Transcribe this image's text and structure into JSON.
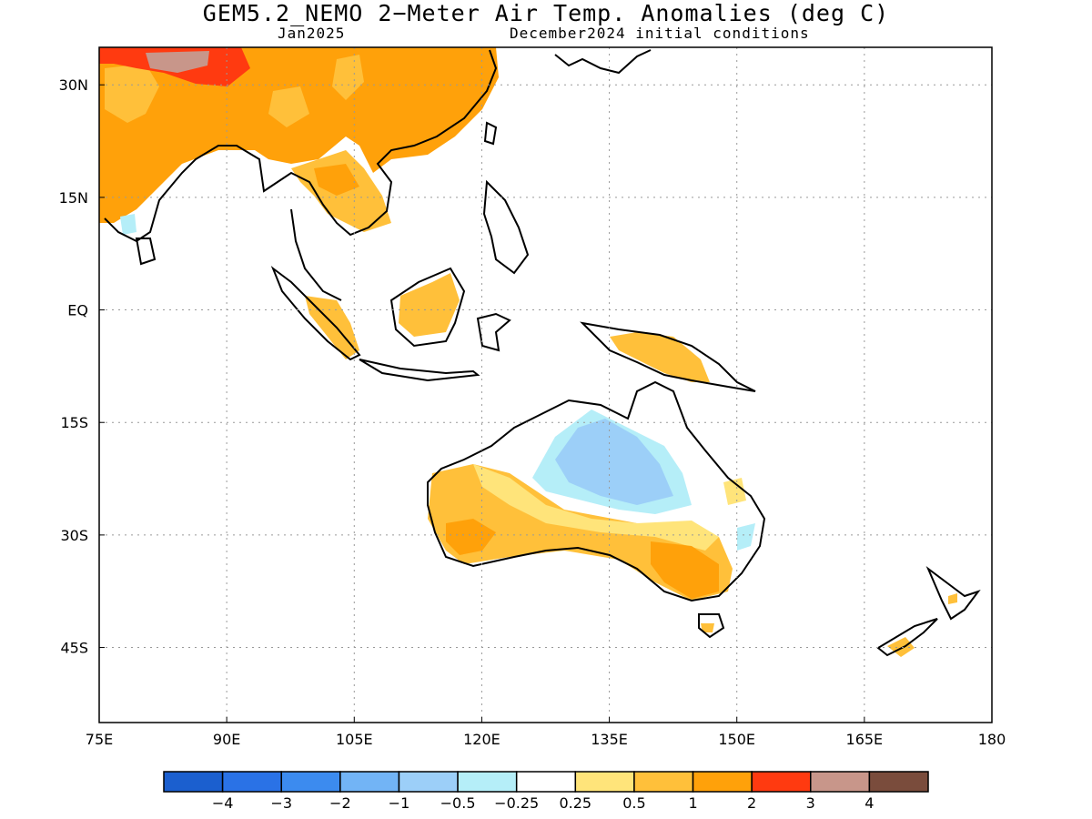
{
  "header": {
    "title": "GEM5.2_NEMO 2−Meter Air Temp. Anomalies (deg C)",
    "valid_month": "Jan2025",
    "init_conditions": "December2024 initial conditions"
  },
  "map": {
    "lon_range": [
      75,
      180
    ],
    "lat_range": [
      -55,
      35
    ],
    "gridlines": true,
    "x_ticks": [
      {
        "lon": 75,
        "label": "75E"
      },
      {
        "lon": 90,
        "label": "90E"
      },
      {
        "lon": 105,
        "label": "105E"
      },
      {
        "lon": 120,
        "label": "120E"
      },
      {
        "lon": 135,
        "label": "135E"
      },
      {
        "lon": 150,
        "label": "150E"
      },
      {
        "lon": 165,
        "label": "165E"
      },
      {
        "lon": 180,
        "label": "180"
      }
    ],
    "y_ticks": [
      {
        "lat": 30,
        "label": "30N"
      },
      {
        "lat": 15,
        "label": "15N"
      },
      {
        "lat": 0,
        "label": "EQ"
      },
      {
        "lat": -15,
        "label": "15S"
      },
      {
        "lat": -30,
        "label": "30S"
      },
      {
        "lat": -45,
        "label": "45S"
      }
    ]
  },
  "colorbar": {
    "colors": [
      "#1b5fcf",
      "#2a72e6",
      "#3c8bef",
      "#72b4f6",
      "#9ccff8",
      "#b5eef8",
      "#ffffff",
      "#ffe47a",
      "#ffc03a",
      "#ffa10a",
      "#ff3a10",
      "#c8968a",
      "#7a4c3c"
    ],
    "labels": [
      "−4",
      "−3",
      "−2",
      "−1",
      "−0.5",
      "−0.25",
      "0.25",
      "0.5",
      "1",
      "2",
      "3",
      "4"
    ]
  }
}
